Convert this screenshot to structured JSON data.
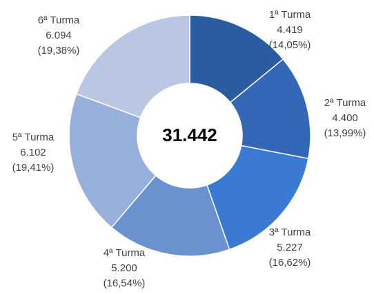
{
  "chart_data": {
    "type": "donut",
    "categories": [
      "1ª Turma",
      "2ª Turma",
      "3ª Turma",
      "4ª Turma",
      "5ª Turma",
      "6ª Turma"
    ],
    "values": [
      4419,
      4400,
      5227,
      5200,
      6102,
      6094
    ],
    "value_labels": [
      "4.419",
      "4.400",
      "5.227",
      "5.200",
      "6.102",
      "6.094"
    ],
    "percents": [
      14.05,
      13.99,
      16.62,
      16.54,
      19.41,
      19.38
    ],
    "percent_labels": [
      "(14,05%)",
      "(13,99%)",
      "(16,62%)",
      "(16,54%)",
      "(19,41%)",
      "(19,38%)"
    ],
    "colors": [
      "#2b5c9f",
      "#3468b6",
      "#3b7ad2",
      "#6a92cf",
      "#97b0db",
      "#b9c7e3"
    ],
    "total": {
      "value": 31442,
      "label": "31.442"
    }
  }
}
